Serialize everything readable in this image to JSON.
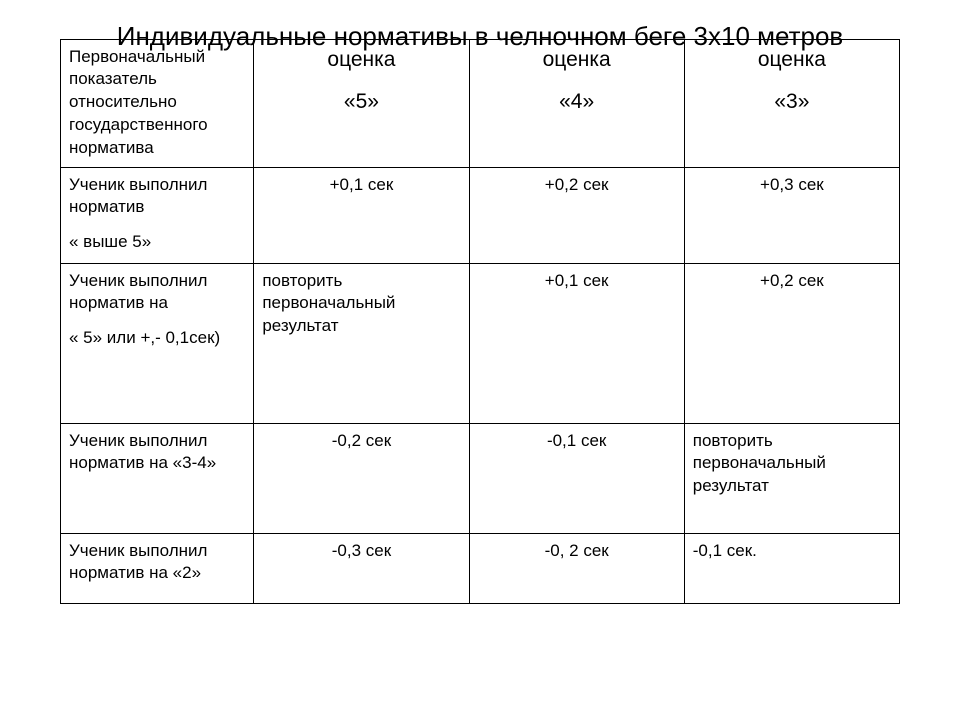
{
  "title": "Индивидуальные нормативы в челночном беге 3х10 метров",
  "table": {
    "border_color": "#000000",
    "background_color": "#ffffff",
    "text_color": "#000000",
    "title_fontsize": 26,
    "header_fontsize": 21,
    "cell_fontsize": 17,
    "columns": [
      {
        "width_pct": 23,
        "align": "left"
      },
      {
        "width_pct": 25.6,
        "align": "left"
      },
      {
        "width_pct": 25.6,
        "align": "left"
      },
      {
        "width_pct": 25.6,
        "align": "left"
      }
    ],
    "header": {
      "c0": "Первоначальный показатель относительно государственного норматива",
      "c1_l1": "оценка",
      "c1_l2": "«5»",
      "c2_l1": "оценка",
      "c2_l2": "«4»",
      "c3_l1": "оценка",
      "c3_l2": "«3»"
    },
    "rows": [
      {
        "label_l1": "Ученик выполнил норматив",
        "label_l2": "« выше 5»",
        "c1": "+0,1 сек",
        "c2": "+0,2 сек",
        "c3": "+0,3 сек",
        "c1_align": "center",
        "c2_align": "center",
        "c3_align": "center"
      },
      {
        "label_l1": "Ученик выполнил норматив на",
        "label_l2": "« 5»  или +,- 0,1сек)",
        "c1": "повторить первоначальный результат",
        "c2": "+0,1 сек",
        "c3": "+0,2 сек",
        "c1_align": "left",
        "c2_align": "center",
        "c3_align": "center"
      },
      {
        "label_l1": "Ученик выполнил норматив на «3-4»",
        "label_l2": "",
        "c1": "-0,2 сек",
        "c2": "-0,1 сек",
        "c3": "повторить первоначальный результат",
        "c1_align": "center",
        "c2_align": "center",
        "c3_align": "left"
      },
      {
        "label_l1": "Ученик выполнил норматив на «2»",
        "label_l2": "",
        "c1": "-0,3 сек",
        "c2": "-0, 2 сек",
        "c3": "-0,1 сек.",
        "c1_align": "center",
        "c2_align": "center",
        "c3_align": "left"
      }
    ]
  }
}
